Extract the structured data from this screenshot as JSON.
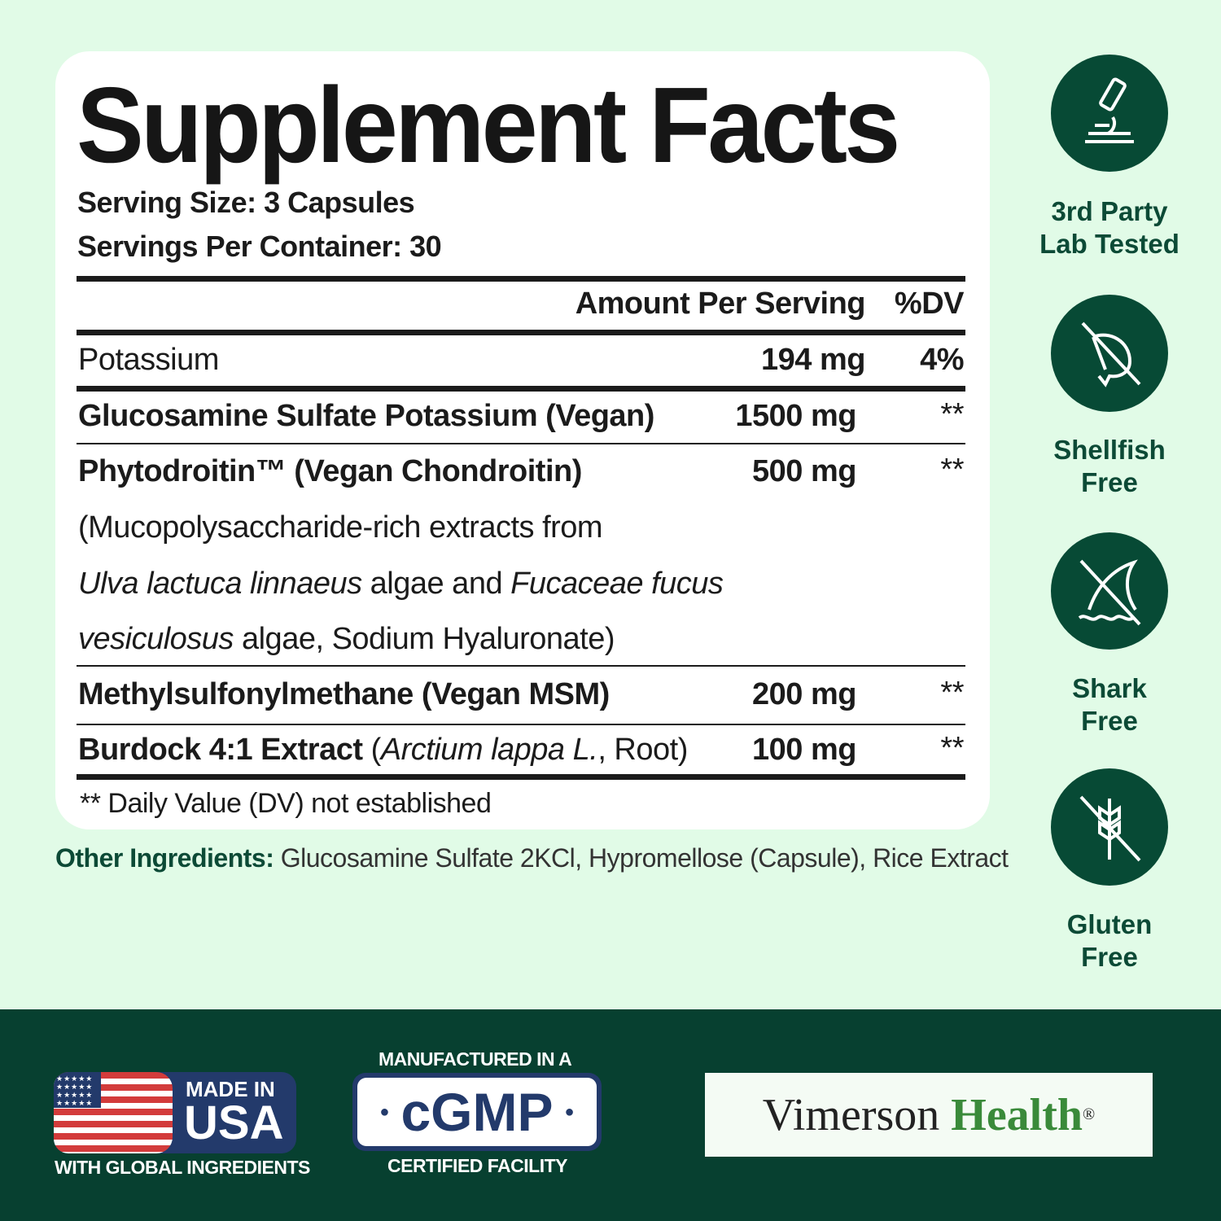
{
  "title": "Supplement Facts",
  "serving_size": "Serving Size: 3 Capsules",
  "servings_per_container": "Servings Per Container: 30",
  "header": {
    "amount": "Amount Per Serving",
    "dv": "%DV"
  },
  "rows": [
    {
      "name": "Potassium",
      "amount": "194 mg",
      "dv": "4%"
    },
    {
      "name": "Glucosamine Sulfate Potassium (Vegan)",
      "amount": "1500 mg",
      "dv": "**"
    },
    {
      "name": "Phytodroitin™ (Vegan Chondroitin)",
      "amount": "500 mg",
      "dv": "**",
      "desc1": "(Mucopolysaccharide-rich extracts from",
      "desc2_i1": "Ulva lactuca linnaeus",
      "desc2_n": " algae and ",
      "desc2_i2": "Fucaceae fucus",
      "desc3_i": "vesiculosus",
      "desc3_n": " algae, Sodium Hyaluronate)"
    },
    {
      "name": "Methylsulfonylmethane (Vegan MSM)",
      "amount": "200 mg",
      "dv": "**"
    },
    {
      "name": "Burdock 4:1 Extract",
      "name_paren_open": " (",
      "name_italic": "Arctium lappa L.",
      "name_paren_close": ", Root)",
      "amount": "100 mg",
      "dv": "**"
    }
  ],
  "footnote": "** Daily Value (DV) not established",
  "other_ingredients": {
    "label": "Other Ingredients:",
    "value": " Glucosamine Sulfate 2KCl, Hypromellose (Capsule), Rice Extract"
  },
  "badges": [
    {
      "icon": "microscope-icon",
      "line1": "3rd Party",
      "line2": "Lab Tested"
    },
    {
      "icon": "no-shellfish-icon",
      "line1": "Shellfish",
      "line2": "Free"
    },
    {
      "icon": "no-shark-icon",
      "line1": "Shark",
      "line2": "Free"
    },
    {
      "icon": "no-gluten-icon",
      "line1": "Gluten",
      "line2": "Free"
    }
  ],
  "footer": {
    "usa": {
      "line1": "MADE IN",
      "line2": "USA",
      "line3": "WITH GLOBAL INGREDIENTS"
    },
    "cgmp": {
      "top": "MANUFACTURED IN A",
      "mark": "cGMP",
      "bottom": "CERTIFIED FACILITY"
    },
    "brand": {
      "part1": "Vimerson",
      "part2": "Health",
      "reg": "®"
    }
  },
  "colors": {
    "background": "#e1fbe7",
    "dark_green": "#074a35",
    "footer": "#074030",
    "navy": "#233a6b",
    "flag_red": "#d33b3b",
    "brand_green": "#3a8a3a"
  }
}
